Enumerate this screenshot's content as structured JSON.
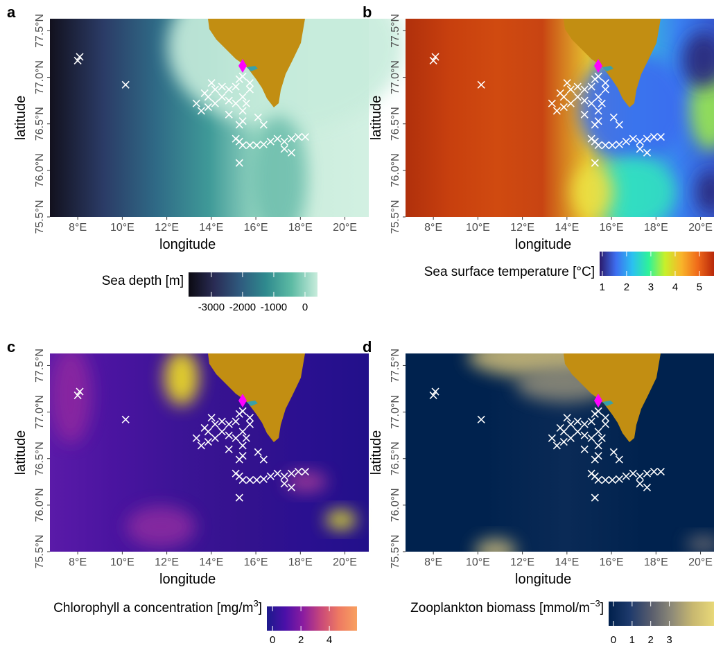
{
  "map": {
    "xlim": [
      6.75,
      20.45
    ],
    "ylim": [
      75.5,
      77.63
    ],
    "xticks": [
      {
        "value": 8,
        "label": "8°E"
      },
      {
        "value": 10,
        "label": "10°E"
      },
      {
        "value": 12,
        "label": "12°E"
      },
      {
        "value": 14,
        "label": "14°E"
      },
      {
        "value": 16,
        "label": "16°E"
      },
      {
        "value": 18,
        "label": "18°E"
      },
      {
        "value": 20,
        "label": "20°E"
      }
    ],
    "yticks": [
      {
        "value": 75.5,
        "label": "75.5°N"
      },
      {
        "value": 76.0,
        "label": "76.0°N"
      },
      {
        "value": 76.5,
        "label": "76.5°N"
      },
      {
        "value": 77.0,
        "label": "77.0°N"
      },
      {
        "value": 77.5,
        "label": "77.5°N"
      }
    ],
    "xlabel": "longitude",
    "ylabel": "latitude"
  },
  "stations": [
    [
      8.0,
      77.18
    ],
    [
      8.09,
      77.22
    ],
    [
      10.15,
      76.92
    ],
    [
      13.33,
      76.72
    ],
    [
      13.55,
      76.64
    ],
    [
      13.86,
      76.68
    ],
    [
      14.17,
      76.72
    ],
    [
      14.48,
      76.79
    ],
    [
      14.79,
      76.87
    ],
    [
      15.1,
      76.9
    ],
    [
      15.26,
      76.98
    ],
    [
      15.41,
      77.01
    ],
    [
      13.86,
      76.79
    ],
    [
      14.17,
      76.87
    ],
    [
      14.48,
      76.9
    ],
    [
      14.79,
      76.75
    ],
    [
      15.1,
      76.72
    ],
    [
      15.41,
      76.64
    ],
    [
      15.26,
      76.49
    ],
    [
      15.41,
      76.53
    ],
    [
      15.57,
      76.72
    ],
    [
      15.41,
      76.79
    ],
    [
      15.73,
      76.87
    ],
    [
      15.26,
      76.31
    ],
    [
      15.41,
      76.27
    ],
    [
      15.73,
      76.27
    ],
    [
      16.04,
      76.27
    ],
    [
      16.35,
      76.28
    ],
    [
      16.66,
      76.31
    ],
    [
      16.97,
      76.34
    ],
    [
      17.28,
      76.31
    ],
    [
      17.6,
      76.34
    ],
    [
      17.91,
      76.36
    ],
    [
      18.22,
      76.36
    ],
    [
      17.28,
      76.23
    ],
    [
      17.6,
      76.19
    ],
    [
      16.1,
      76.57
    ],
    [
      16.35,
      76.49
    ],
    [
      15.26,
      76.08
    ],
    [
      15.73,
      76.94
    ],
    [
      13.7,
      76.83
    ],
    [
      14.79,
      76.6
    ],
    [
      14.01,
      76.94
    ],
    [
      15.1,
      76.34
    ]
  ],
  "panels": [
    {
      "letter": "a",
      "legend": {
        "title": "Sea depth [m]",
        "lim": [
          -3730,
          400
        ],
        "ticks": [
          -3000,
          -2000,
          -1000,
          0
        ],
        "colors": [
          "#0b0a12",
          "#2a2c55",
          "#2f5a7e",
          "#2f8a8e",
          "#5dbba4",
          "#c8ecdc"
        ]
      }
    },
    {
      "letter": "b",
      "legend": {
        "title": "Sea surface temperature [°C]",
        "lim": [
          0.89,
          5.6
        ],
        "ticks": [
          1,
          2,
          3,
          4,
          5
        ],
        "colors": [
          "#2b1a6b",
          "#3d6ef0",
          "#2bc0f0",
          "#2ef29a",
          "#c8f02a",
          "#f8b52a",
          "#f06a1a",
          "#b8280a"
        ]
      }
    },
    {
      "letter": "c",
      "legend": {
        "title": "Chlorophyll a concentration [mg/m",
        "title_sup": "3",
        "title_end": "]",
        "lim": [
          -0.4,
          5.95
        ],
        "ticks": [
          0,
          2,
          4
        ],
        "colors": [
          "#1c1a8c",
          "#4a10a8",
          "#8a1ca0",
          "#c8487a",
          "#ee7a62",
          "#f8a060"
        ]
      }
    },
    {
      "letter": "d",
      "legend": {
        "title": "Zooplankton biomass [mmol/m",
        "title_sup": "−3",
        "title_end": "]",
        "lim": [
          -0.26,
          5.4
        ],
        "ticks": [
          0,
          1,
          2,
          3
        ],
        "colors": [
          "#00204c",
          "#1e3a6c",
          "#575c6d",
          "#8e8a78",
          "#c8b870",
          "#e8d878"
        ]
      }
    }
  ]
}
